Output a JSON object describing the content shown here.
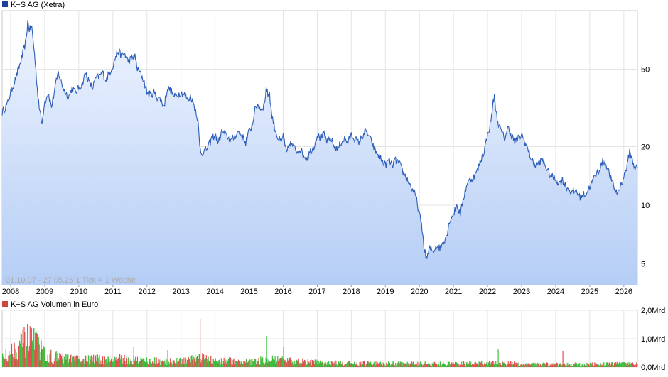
{
  "chart_data": [
    {
      "type": "area",
      "legend_label": "K+S AG (Xetra)",
      "legend_color": "#1f3f99",
      "line_color": "#2a5cb8",
      "fill_top_color": "#eef4ff",
      "fill_bottom_color": "#b5cdf5",
      "y_scale": "log",
      "ylim": [
        3.9,
        100
      ],
      "y_ticks": [
        5,
        10,
        20,
        50
      ],
      "y_tick_labels": [
        "5",
        "10",
        "20",
        "50"
      ],
      "xlim": [
        2007.75,
        2026.4
      ],
      "x_ticks": [
        2008,
        2009,
        2010,
        2011,
        2012,
        2013,
        2014,
        2015,
        2016,
        2017,
        2018,
        2019,
        2020,
        2021,
        2022,
        2023,
        2024,
        2025,
        2026
      ],
      "x_tick_labels": [
        "2008",
        "2009",
        "2010",
        "2011",
        "2012",
        "2013",
        "2014",
        "2015",
        "2016",
        "2017",
        "2018",
        "2019",
        "2020",
        "2021",
        "2022",
        "2023",
        "2024",
        "2025",
        "2026"
      ],
      "info_text": "01.10.07 - 27.05.26   1 Tick = 1 Woche",
      "grid": true,
      "points": [
        [
          2007.75,
          30
        ],
        [
          2007.9,
          33
        ],
        [
          2008.0,
          38
        ],
        [
          2008.15,
          45
        ],
        [
          2008.3,
          55
        ],
        [
          2008.45,
          70
        ],
        [
          2008.5,
          88
        ],
        [
          2008.55,
          80
        ],
        [
          2008.62,
          82
        ],
        [
          2008.7,
          60
        ],
        [
          2008.78,
          40
        ],
        [
          2008.86,
          30
        ],
        [
          2008.92,
          26
        ],
        [
          2008.98,
          33
        ],
        [
          2009.1,
          38
        ],
        [
          2009.2,
          32
        ],
        [
          2009.3,
          40
        ],
        [
          2009.4,
          48
        ],
        [
          2009.5,
          42
        ],
        [
          2009.6,
          38
        ],
        [
          2009.7,
          36
        ],
        [
          2009.8,
          40
        ],
        [
          2009.9,
          38
        ],
        [
          2010.0,
          40
        ],
        [
          2010.1,
          42
        ],
        [
          2010.2,
          48
        ],
        [
          2010.3,
          43
        ],
        [
          2010.4,
          40
        ],
        [
          2010.5,
          45
        ],
        [
          2010.6,
          46
        ],
        [
          2010.7,
          48
        ],
        [
          2010.8,
          44
        ],
        [
          2010.9,
          48
        ],
        [
          2011.0,
          52
        ],
        [
          2011.08,
          58
        ],
        [
          2011.15,
          62
        ],
        [
          2011.25,
          59
        ],
        [
          2011.35,
          60
        ],
        [
          2011.45,
          55
        ],
        [
          2011.55,
          57
        ],
        [
          2011.65,
          58
        ],
        [
          2011.72,
          50
        ],
        [
          2011.8,
          48
        ],
        [
          2011.9,
          44
        ],
        [
          2012.0,
          38
        ],
        [
          2012.1,
          37
        ],
        [
          2012.2,
          38
        ],
        [
          2012.3,
          36
        ],
        [
          2012.4,
          35
        ],
        [
          2012.5,
          32
        ],
        [
          2012.6,
          40
        ],
        [
          2012.7,
          39
        ],
        [
          2012.8,
          36
        ],
        [
          2012.9,
          37
        ],
        [
          2013.0,
          38
        ],
        [
          2013.1,
          37
        ],
        [
          2013.2,
          35
        ],
        [
          2013.3,
          36
        ],
        [
          2013.4,
          32
        ],
        [
          2013.45,
          30
        ],
        [
          2013.5,
          27
        ],
        [
          2013.55,
          20
        ],
        [
          2013.6,
          18.5
        ],
        [
          2013.7,
          19
        ],
        [
          2013.8,
          20
        ],
        [
          2013.9,
          22
        ],
        [
          2014.0,
          23
        ],
        [
          2014.1,
          21
        ],
        [
          2014.2,
          24
        ],
        [
          2014.3,
          23
        ],
        [
          2014.4,
          22
        ],
        [
          2014.5,
          21.5
        ],
        [
          2014.6,
          23
        ],
        [
          2014.7,
          24
        ],
        [
          2014.8,
          22.5
        ],
        [
          2014.9,
          21
        ],
        [
          2015.0,
          24
        ],
        [
          2015.1,
          26
        ],
        [
          2015.15,
          30
        ],
        [
          2015.25,
          33
        ],
        [
          2015.35,
          31
        ],
        [
          2015.45,
          33
        ],
        [
          2015.5,
          40
        ],
        [
          2015.55,
          37
        ],
        [
          2015.6,
          38
        ],
        [
          2015.65,
          30
        ],
        [
          2015.75,
          25
        ],
        [
          2015.85,
          22
        ],
        [
          2015.95,
          21
        ],
        [
          2016.0,
          23
        ],
        [
          2016.05,
          20
        ],
        [
          2016.1,
          18.5
        ],
        [
          2016.2,
          21
        ],
        [
          2016.3,
          20
        ],
        [
          2016.4,
          19
        ],
        [
          2016.5,
          19.5
        ],
        [
          2016.6,
          18
        ],
        [
          2016.7,
          17.5
        ],
        [
          2016.8,
          19
        ],
        [
          2016.9,
          20
        ],
        [
          2017.0,
          23
        ],
        [
          2017.1,
          22
        ],
        [
          2017.2,
          23
        ],
        [
          2017.3,
          21
        ],
        [
          2017.4,
          22
        ],
        [
          2017.5,
          20
        ],
        [
          2017.6,
          19.5
        ],
        [
          2017.7,
          21
        ],
        [
          2017.8,
          22
        ],
        [
          2017.9,
          21
        ],
        [
          2018.0,
          23
        ],
        [
          2018.1,
          22
        ],
        [
          2018.2,
          21
        ],
        [
          2018.3,
          22
        ],
        [
          2018.4,
          24
        ],
        [
          2018.5,
          23
        ],
        [
          2018.6,
          21
        ],
        [
          2018.7,
          19
        ],
        [
          2018.8,
          18
        ],
        [
          2018.9,
          17
        ],
        [
          2019.0,
          16
        ],
        [
          2019.1,
          17
        ],
        [
          2019.2,
          16
        ],
        [
          2019.3,
          17
        ],
        [
          2019.4,
          16.5
        ],
        [
          2019.5,
          15
        ],
        [
          2019.6,
          14
        ],
        [
          2019.7,
          13
        ],
        [
          2019.8,
          12
        ],
        [
          2019.9,
          11
        ],
        [
          2020.0,
          9
        ],
        [
          2020.08,
          7.5
        ],
        [
          2020.15,
          5.8
        ],
        [
          2020.22,
          5.3
        ],
        [
          2020.3,
          6
        ],
        [
          2020.4,
          5.8
        ],
        [
          2020.5,
          6.2
        ],
        [
          2020.6,
          6
        ],
        [
          2020.7,
          6.5
        ],
        [
          2020.8,
          7
        ],
        [
          2020.9,
          8.5
        ],
        [
          2021.0,
          9
        ],
        [
          2021.1,
          10
        ],
        [
          2021.2,
          9
        ],
        [
          2021.3,
          11
        ],
        [
          2021.4,
          13
        ],
        [
          2021.5,
          13.5
        ],
        [
          2021.6,
          14
        ],
        [
          2021.7,
          15
        ],
        [
          2021.8,
          17
        ],
        [
          2021.9,
          19
        ],
        [
          2022.0,
          23
        ],
        [
          2022.1,
          27
        ],
        [
          2022.15,
          33
        ],
        [
          2022.2,
          36
        ],
        [
          2022.25,
          30
        ],
        [
          2022.3,
          27
        ],
        [
          2022.4,
          24
        ],
        [
          2022.5,
          22
        ],
        [
          2022.6,
          25
        ],
        [
          2022.7,
          23
        ],
        [
          2022.8,
          21
        ],
        [
          2022.9,
          22
        ],
        [
          2023.0,
          23
        ],
        [
          2023.1,
          21
        ],
        [
          2023.2,
          19
        ],
        [
          2023.3,
          17
        ],
        [
          2023.4,
          16
        ],
        [
          2023.5,
          16.5
        ],
        [
          2023.6,
          17
        ],
        [
          2023.7,
          16
        ],
        [
          2023.8,
          14.5
        ],
        [
          2023.9,
          14
        ],
        [
          2024.0,
          13.5
        ],
        [
          2024.1,
          13
        ],
        [
          2024.2,
          13.5
        ],
        [
          2024.3,
          12.5
        ],
        [
          2024.4,
          12
        ],
        [
          2024.5,
          11.5
        ],
        [
          2024.6,
          12
        ],
        [
          2024.7,
          11
        ],
        [
          2024.8,
          11.3
        ],
        [
          2024.9,
          11.5
        ],
        [
          2025.0,
          12.5
        ],
        [
          2025.1,
          13.5
        ],
        [
          2025.2,
          14.5
        ],
        [
          2025.3,
          15.5
        ],
        [
          2025.4,
          17
        ],
        [
          2025.5,
          16
        ],
        [
          2025.6,
          14
        ],
        [
          2025.7,
          12.5
        ],
        [
          2025.8,
          11.5
        ],
        [
          2025.9,
          12.5
        ],
        [
          2026.0,
          14
        ],
        [
          2026.1,
          16
        ],
        [
          2026.17,
          19
        ],
        [
          2026.25,
          17
        ],
        [
          2026.3,
          16
        ],
        [
          2026.4,
          15.5
        ]
      ]
    },
    {
      "type": "bar",
      "legend_label": "K+S AG Volumen in Euro",
      "legend_color": "#cc4444",
      "up_color": "#3fbf3f",
      "down_color": "#e05050",
      "ylim": [
        0,
        2.0
      ],
      "y_ticks": [
        0,
        1.0,
        2.0
      ],
      "y_tick_labels": [
        "0,0Mrd",
        "1,0Mrd",
        "2,0Mrd"
      ],
      "xlim": [
        2007.75,
        2026.4
      ],
      "grid": true,
      "volume_profile": [
        [
          2007.75,
          0.45
        ],
        [
          2008.0,
          0.65
        ],
        [
          2008.3,
          0.9
        ],
        [
          2008.55,
          1.05
        ],
        [
          2008.8,
          0.8
        ],
        [
          2009.0,
          0.45
        ],
        [
          2009.5,
          0.35
        ],
        [
          2010.0,
          0.3
        ],
        [
          2010.5,
          0.3
        ],
        [
          2011.0,
          0.32
        ],
        [
          2011.5,
          0.28
        ],
        [
          2012.0,
          0.25
        ],
        [
          2012.5,
          0.22
        ],
        [
          2013.0,
          0.22
        ],
        [
          2013.55,
          0.35
        ],
        [
          2014.0,
          0.25
        ],
        [
          2015.0,
          0.22
        ],
        [
          2015.6,
          0.28
        ],
        [
          2016.0,
          0.25
        ],
        [
          2017.0,
          0.18
        ],
        [
          2018.0,
          0.14
        ],
        [
          2019.0,
          0.14
        ],
        [
          2020.0,
          0.14
        ],
        [
          2021.0,
          0.13
        ],
        [
          2022.0,
          0.16
        ],
        [
          2022.3,
          0.16
        ],
        [
          2023.0,
          0.12
        ],
        [
          2024.0,
          0.11
        ],
        [
          2025.0,
          0.11
        ],
        [
          2026.0,
          0.13
        ],
        [
          2026.4,
          0.12
        ]
      ],
      "spikes": [
        [
          2013.55,
          1.7
        ],
        [
          2008.6,
          1.35
        ],
        [
          2008.4,
          1.25
        ],
        [
          2008.75,
          1.15
        ],
        [
          2015.5,
          1.1
        ],
        [
          2016.0,
          0.7
        ],
        [
          2022.3,
          0.62
        ],
        [
          2024.2,
          0.55
        ],
        [
          2011.6,
          0.7
        ],
        [
          2012.6,
          0.6
        ]
      ]
    }
  ]
}
